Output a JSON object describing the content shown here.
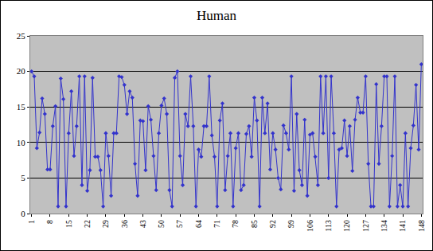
{
  "chart_data": {
    "type": "line",
    "title": "Human",
    "x": [
      1,
      2,
      3,
      4,
      5,
      6,
      7,
      8,
      9,
      10,
      11,
      12,
      13,
      14,
      15,
      16,
      17,
      18,
      19,
      20,
      21,
      22,
      23,
      24,
      25,
      26,
      27,
      28,
      29,
      30,
      31,
      32,
      33,
      34,
      35,
      36,
      37,
      38,
      39,
      40,
      41,
      42,
      43,
      44,
      45,
      46,
      47,
      48,
      49,
      50,
      51,
      52,
      53,
      54,
      55,
      56,
      57,
      58,
      59,
      60,
      61,
      62,
      63,
      64,
      65,
      66,
      67,
      68,
      69,
      70,
      71,
      72,
      73,
      74,
      75,
      76,
      77,
      78,
      79,
      80,
      81,
      82,
      83,
      84,
      85,
      86,
      87,
      88,
      89,
      90,
      91,
      92,
      93,
      94,
      95,
      96,
      97,
      98,
      99,
      100,
      101,
      102,
      103,
      104,
      105,
      106,
      107,
      108,
      109,
      110,
      111,
      112,
      113,
      114,
      115,
      116,
      117,
      118,
      119,
      120,
      121,
      122,
      123,
      124,
      125,
      126,
      127,
      128,
      129,
      130,
      131,
      132,
      133,
      134,
      135,
      136,
      137,
      138,
      139,
      140,
      141,
      142,
      143,
      144,
      145,
      146,
      147,
      148
    ],
    "values": [
      20,
      19.3,
      9.2,
      11.4,
      16.2,
      14,
      6.2,
      6.2,
      12.3,
      15.1,
      1,
      19,
      16.1,
      1,
      11.3,
      17.2,
      8.1,
      12.3,
      19.3,
      4,
      19.3,
      3.2,
      6.1,
      19.1,
      8,
      8,
      6.1,
      1,
      11.3,
      8.1,
      2.5,
      11.3,
      11.3,
      19.3,
      19.2,
      18.1,
      14,
      17.2,
      16.3,
      7,
      2.5,
      13.1,
      13,
      6.1,
      15.1,
      13.2,
      8.1,
      3.3,
      11.3,
      15.2,
      16.2,
      14,
      3.3,
      1,
      19.1,
      20,
      8.1,
      4,
      14,
      12.3,
      19.3,
      12.3,
      1,
      9,
      8,
      12.3,
      12.3,
      19.3,
      11,
      8,
      1,
      13.1,
      15.5,
      3.3,
      8.1,
      11.3,
      1,
      9.2,
      11.3,
      3.3,
      4,
      11.2,
      12.3,
      8,
      16.3,
      13.1,
      1,
      16.3,
      11.3,
      15.5,
      6.2,
      11.3,
      9,
      5,
      3.4,
      12.4,
      11.3,
      9,
      19.3,
      3.2,
      14,
      6.1,
      4,
      13.2,
      2.5,
      11.1,
      11.3,
      8,
      4,
      19.3,
      11.3,
      19.3,
      5,
      19.3,
      11.3,
      1,
      9,
      9.2,
      13.1,
      8.1,
      12.3,
      6,
      13.2,
      16.3,
      14.2,
      14.2,
      19.3,
      7,
      1,
      1,
      18.2,
      7,
      12.3,
      19.3,
      19.3,
      1,
      8.1,
      19.3,
      1,
      4,
      1,
      11.3,
      1,
      9.2,
      12.4,
      18.1,
      9,
      21
    ],
    "color": "#3333cc",
    "marker": "diamond",
    "xlim": [
      0.5,
      148.5
    ],
    "xticks": [
      1,
      8,
      15,
      22,
      29,
      36,
      43,
      50,
      57,
      64,
      71,
      78,
      85,
      92,
      99,
      106,
      113,
      120,
      127,
      134,
      141,
      148
    ],
    "ylim": [
      0,
      25
    ],
    "yticks": [
      0,
      5,
      10,
      15,
      20,
      25
    ],
    "grid": true
  }
}
